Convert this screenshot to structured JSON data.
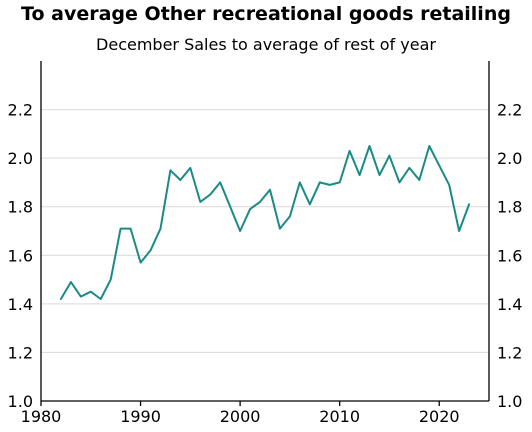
{
  "chart_data": {
    "type": "line",
    "title": "To average Other recreational goods retailing",
    "subtitle": "December Sales to average of rest of year",
    "xlabel": "",
    "ylabel": "",
    "xlim": [
      1980,
      2025
    ],
    "ylim": [
      1.0,
      2.4
    ],
    "x_ticks": [
      1980,
      1990,
      2000,
      2010,
      2020
    ],
    "y_ticks": [
      1.0,
      1.2,
      1.4,
      1.6,
      1.8,
      2.0,
      2.2
    ],
    "y_axis_both_sides": true,
    "grid": "horizontal",
    "legend": "none",
    "colors": {
      "series": "#1a8a87",
      "grid": "#d9d9d9",
      "axis": "#000000"
    },
    "series": [
      {
        "x": [
          1982,
          1983,
          1984,
          1985,
          1986,
          1987,
          1988,
          1989,
          1990,
          1991,
          1992,
          1993,
          1994,
          1995,
          1996,
          1997,
          1998,
          1999,
          2000,
          2001,
          2002,
          2003,
          2004,
          2005,
          2006,
          2007,
          2008,
          2009,
          2010,
          2011,
          2012,
          2013,
          2014,
          2015,
          2016,
          2017,
          2018,
          2019,
          2020,
          2021,
          2022,
          2023
        ],
        "values": [
          1.42,
          1.49,
          1.43,
          1.45,
          1.42,
          1.5,
          1.71,
          1.71,
          1.57,
          1.62,
          1.71,
          1.95,
          1.91,
          1.96,
          1.82,
          1.85,
          1.9,
          1.8,
          1.7,
          1.79,
          1.82,
          1.87,
          1.71,
          1.76,
          1.9,
          1.81,
          1.9,
          1.89,
          1.9,
          2.03,
          1.93,
          2.05,
          1.93,
          2.01,
          1.9,
          1.96,
          1.91,
          2.05,
          1.97,
          1.89,
          1.7,
          1.81
        ]
      }
    ]
  }
}
